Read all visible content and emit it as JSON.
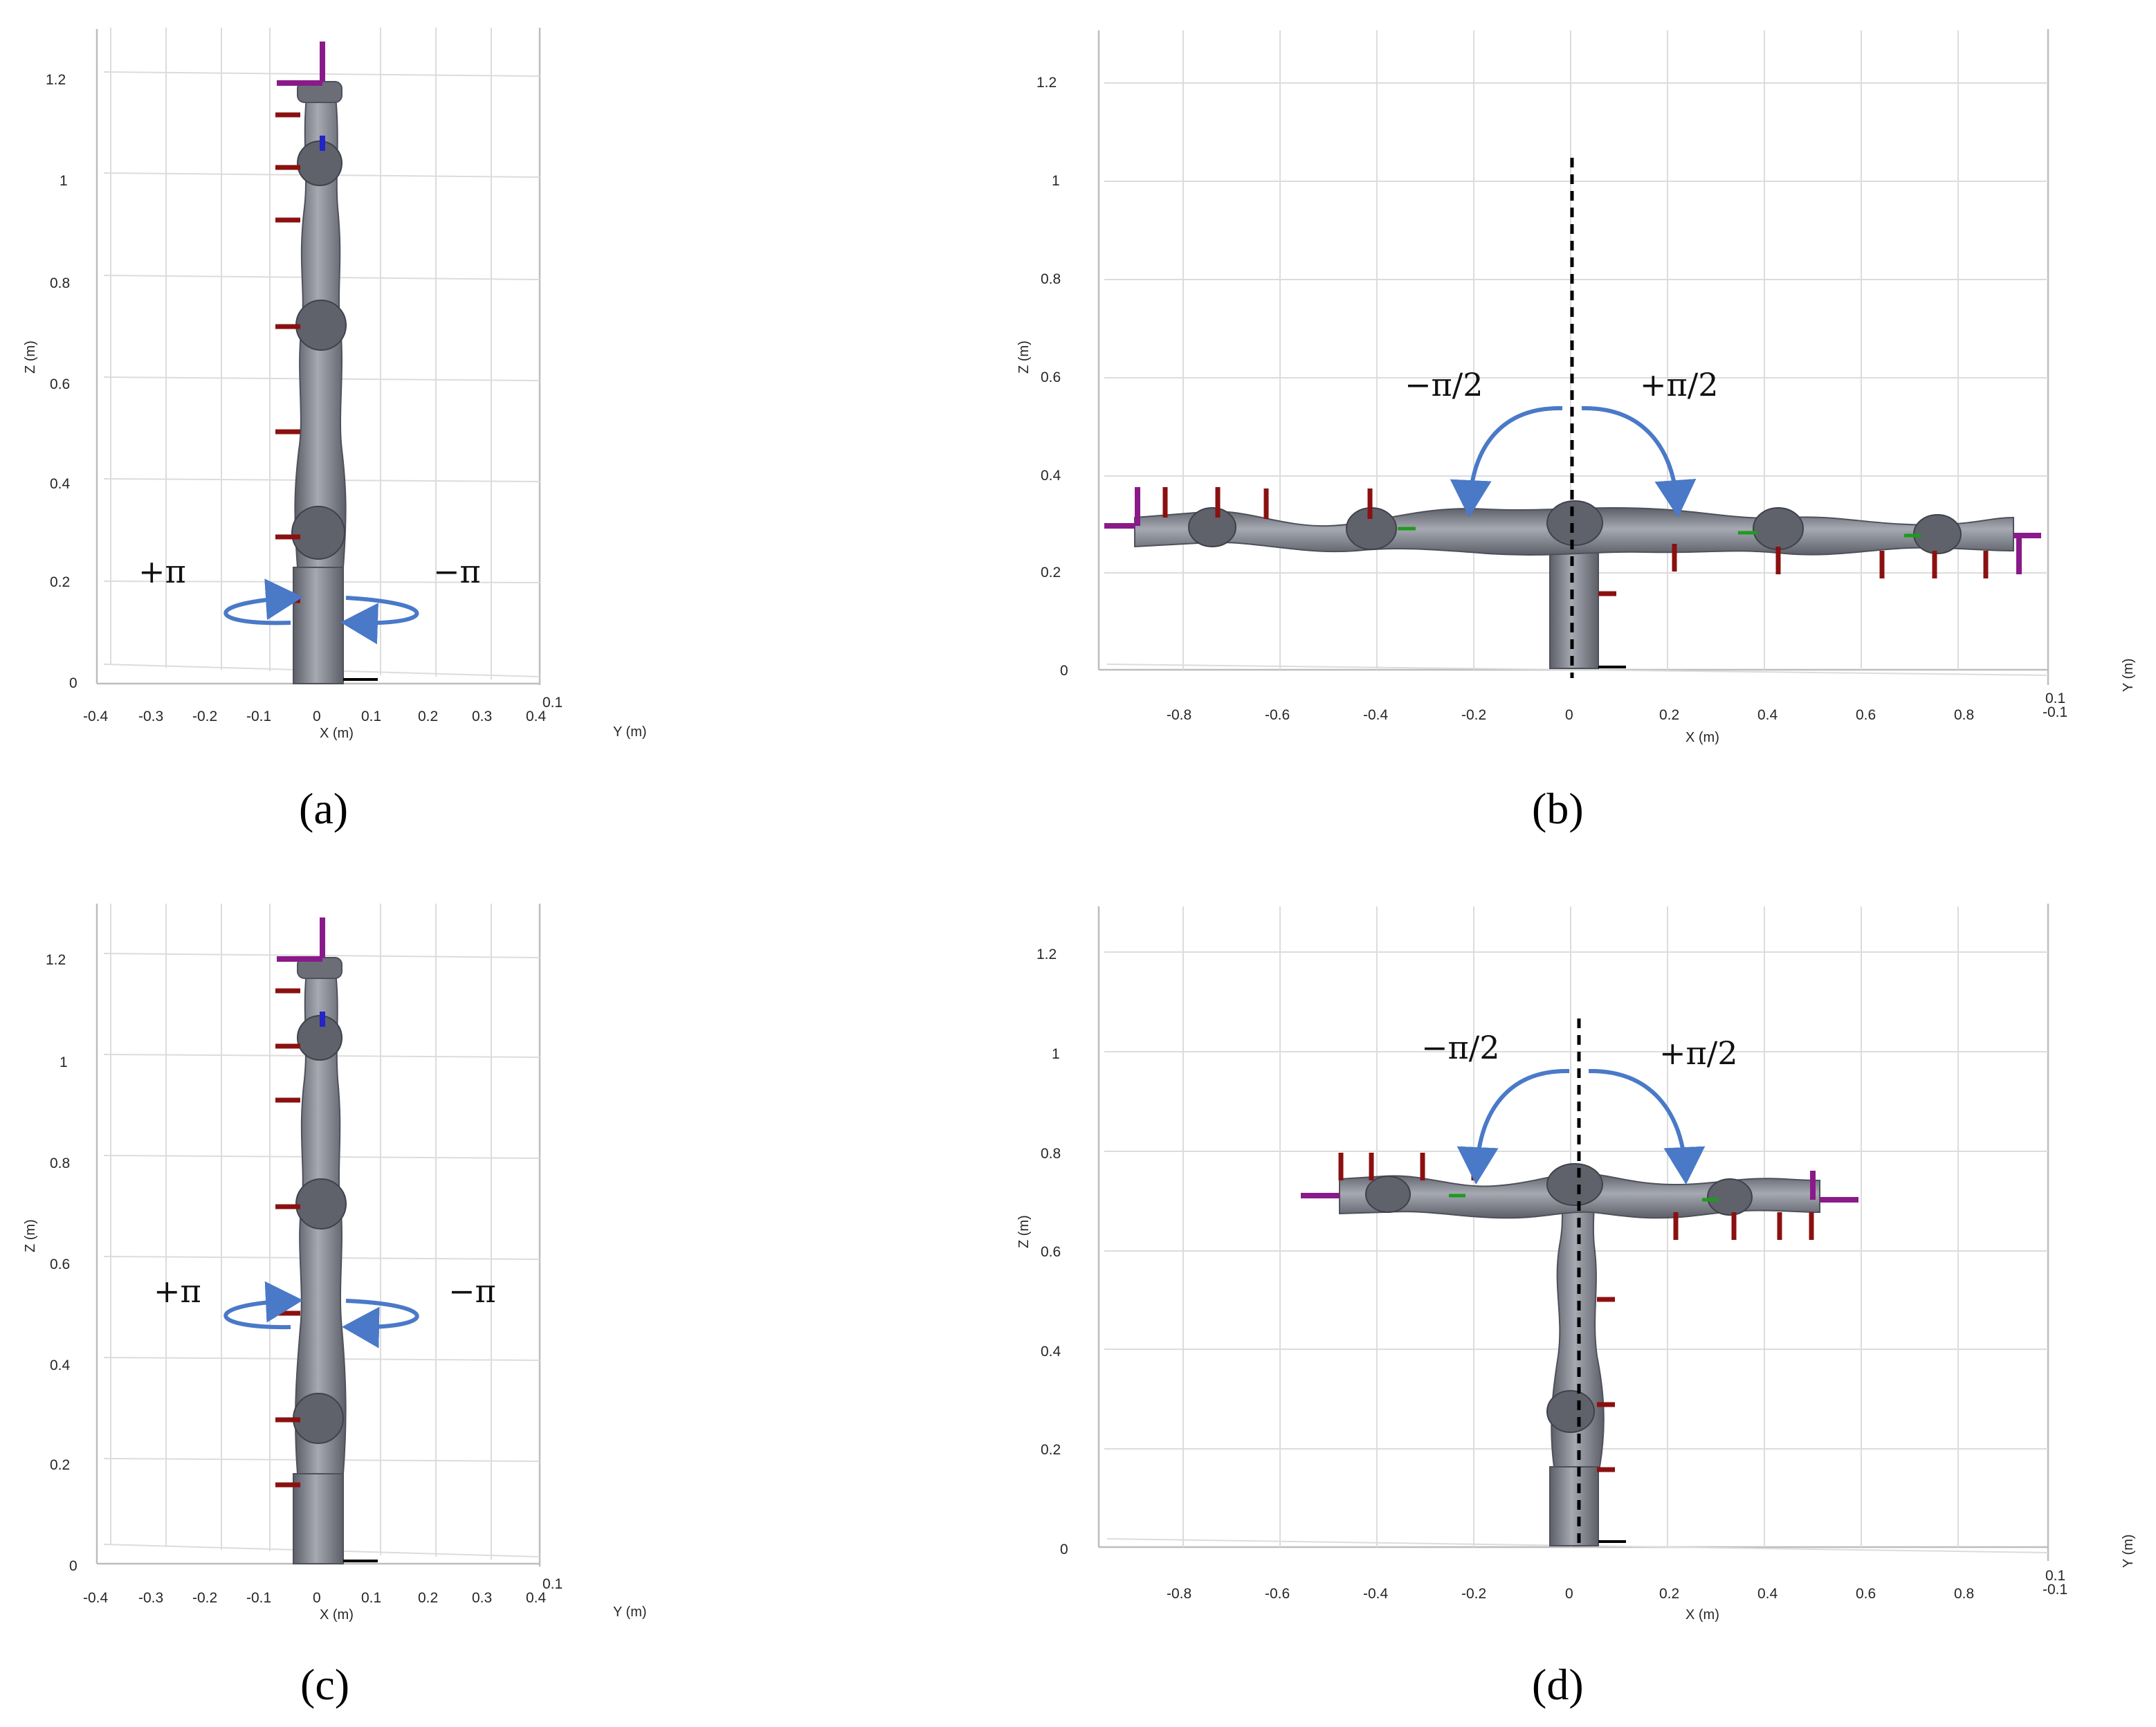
{
  "panels": [
    {
      "id": "a",
      "label": "(a)",
      "zlabel": "Z (m)",
      "xlabel": "X (m)",
      "ylabel": "Y (m)",
      "zticks": [
        "0",
        "0.2",
        "0.4",
        "0.6",
        "0.8",
        "1",
        "1.2"
      ],
      "xticks": [
        "-0.4",
        "-0.3",
        "-0.2",
        "-0.1",
        "0",
        "0.1",
        "0.2",
        "0.3",
        "0.4"
      ],
      "yticks": [
        "0.1",
        "0.4"
      ],
      "annotations": [
        "+π",
        "−π"
      ]
    },
    {
      "id": "b",
      "label": "(b)",
      "zlabel": "Z (m)",
      "xlabel": "X (m)",
      "ylabel": "Y (m)",
      "zticks": [
        "0",
        "0.2",
        "0.4",
        "0.6",
        "0.8",
        "1",
        "1.2"
      ],
      "xticks": [
        "-0.8",
        "-0.6",
        "-0.4",
        "-0.2",
        "0",
        "0.2",
        "0.4",
        "0.6",
        "0.8"
      ],
      "yticks": [
        "0.1",
        "-0.1"
      ],
      "annotations": [
        "−π/2",
        "+π/2"
      ]
    },
    {
      "id": "c",
      "label": "(c)",
      "zlabel": "Z (m)",
      "xlabel": "X (m)",
      "ylabel": "Y (m)",
      "zticks": [
        "0",
        "0.2",
        "0.4",
        "0.6",
        "0.8",
        "1",
        "1.2"
      ],
      "xticks": [
        "-0.4",
        "-0.3",
        "-0.2",
        "-0.1",
        "0",
        "0.1",
        "0.2",
        "0.3",
        "0.4"
      ],
      "yticks": [
        "0.1",
        "0.4"
      ],
      "annotations": [
        "+π",
        "−π"
      ]
    },
    {
      "id": "d",
      "label": "(d)",
      "zlabel": "Z (m)",
      "xlabel": "X (m)",
      "ylabel": "Y (m)",
      "zticks": [
        "0",
        "0.2",
        "0.4",
        "0.6",
        "0.8",
        "1",
        "1.2"
      ],
      "xticks": [
        "-0.8",
        "-0.6",
        "-0.4",
        "-0.2",
        "0",
        "0.2",
        "0.4",
        "0.6",
        "0.8"
      ],
      "yticks": [
        "0.1",
        "-0.1"
      ],
      "annotations": [
        "−π/2",
        "+π/2"
      ]
    }
  ]
}
